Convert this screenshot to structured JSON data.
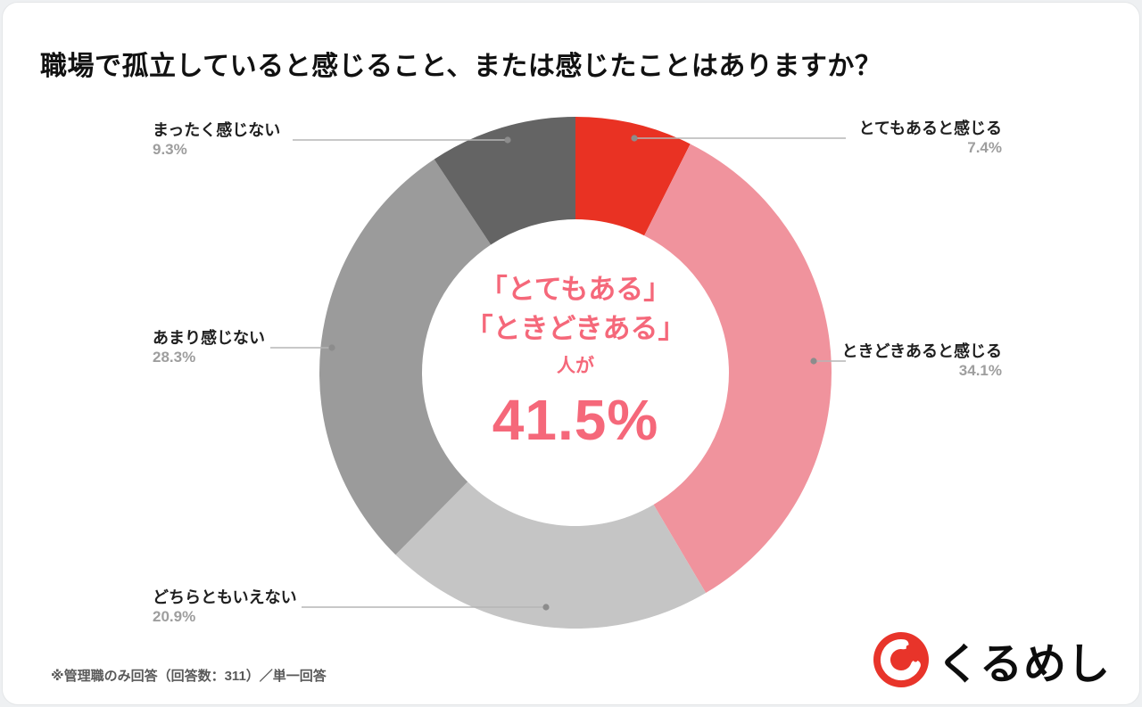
{
  "page": {
    "title": "職場で孤立していると感じること、または感じたことはありますか？",
    "footnote": "※管理職のみ回答（回答数：311）／単一回答",
    "logo_text": "くるめし"
  },
  "chart_data": {
    "type": "pie",
    "variant": "donut",
    "title": "職場で孤立していると感じること、または感じたことはありますか？",
    "start_angle": "top",
    "direction": "clockwise",
    "unit": "%",
    "inner_radius_ratio": 0.6,
    "legend": "callout-labels-with-leader-lines",
    "segments": [
      {
        "label": "とてもあると感じる",
        "value": 7.4,
        "pct_label": "7.4%",
        "color": "#e93223"
      },
      {
        "label": "ときどきあると感じる",
        "value": 34.1,
        "pct_label": "34.1%",
        "color": "#f0939d"
      },
      {
        "label": "どちらともいえない",
        "value": 20.9,
        "pct_label": "20.9%",
        "color": "#c5c5c5"
      },
      {
        "label": "あまり感じない",
        "value": 28.3,
        "pct_label": "28.3%",
        "color": "#9b9b9b"
      },
      {
        "label": "まったく感じない",
        "value": 9.3,
        "pct_label": "9.3%",
        "color": "#646464"
      }
    ],
    "center_text": {
      "line1": "「とてもある」",
      "line2": "「ときどきある」",
      "line3": "人が",
      "value": "41.5%",
      "color": "#f5687a"
    },
    "logo_color": "#e8342a"
  }
}
